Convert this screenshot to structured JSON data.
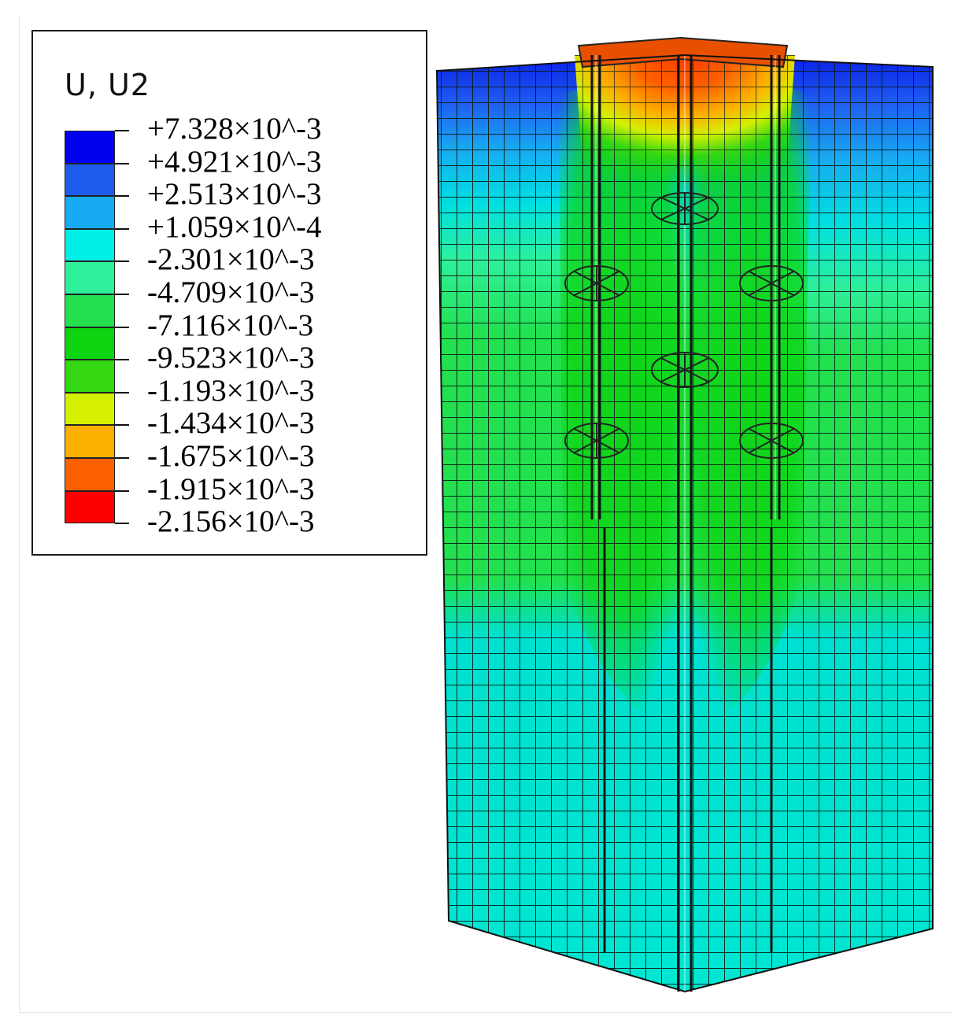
{
  "legend": {
    "title": "U, U2",
    "entries": [
      {
        "label": "+7.328×10^-3",
        "color": "#0000f0"
      },
      {
        "label": "+4.921×10^-3",
        "color": "#1e5cf0"
      },
      {
        "label": "+2.513×10^-3",
        "color": "#18aaf2"
      },
      {
        "label": "+1.059×10^-4",
        "color": "#00f0e8"
      },
      {
        "label": "-2.301×10^-3",
        "color": "#2ef09a"
      },
      {
        "label": "-4.709×10^-3",
        "color": "#22e04e"
      },
      {
        "label": "-7.116×10^-3",
        "color": "#0cd410"
      },
      {
        "label": "-9.523×10^-3",
        "color": "#34d812"
      },
      {
        "label": "-1.193×10^-3",
        "color": "#d4f000"
      },
      {
        "label": "-1.434×10^-3",
        "color": "#fcb000"
      },
      {
        "label": "-1.675×10^-3",
        "color": "#fc6000"
      },
      {
        "label": "-1.915×10^-3",
        "color": "#fc0000"
      },
      {
        "label": "-2.156×10^-3",
        "color": ""
      }
    ]
  }
}
